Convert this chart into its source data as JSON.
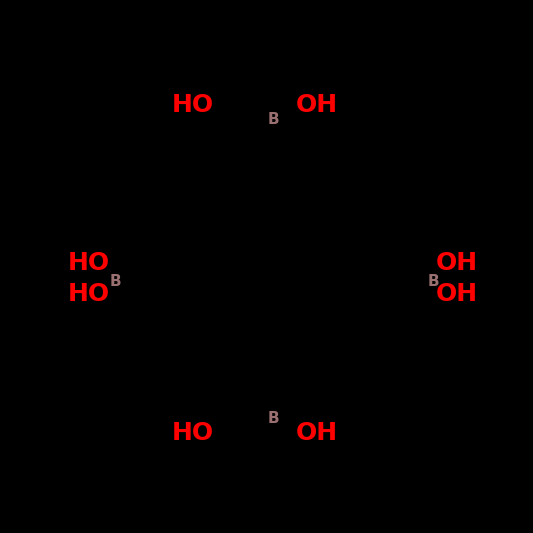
{
  "background_color": "#000000",
  "B_color": "#9b7070",
  "OH_color": "#ff0000",
  "B_fontsize": 11,
  "OH_fontsize": 18,
  "figsize": [
    5.33,
    5.33
  ],
  "dpi": 100,
  "label_positions": {
    "top": {
      "B": [
        0.5,
        0.865
      ],
      "HO": [
        0.355,
        0.9
      ],
      "OH": [
        0.555,
        0.9
      ],
      "HO_ha": "right",
      "OH_ha": "left",
      "HO_va": "center",
      "OH_va": "center"
    },
    "left": {
      "B": [
        0.115,
        0.47
      ],
      "HO_upper": [
        0.0,
        0.44
      ],
      "HO_lower": [
        0.0,
        0.515
      ],
      "HO_upper_ha": "left",
      "HO_lower_ha": "left",
      "HO_upper_va": "center",
      "HO_lower_va": "center"
    },
    "right": {
      "B": [
        0.89,
        0.47
      ],
      "OH_upper": [
        1.0,
        0.44
      ],
      "OH_lower": [
        1.0,
        0.515
      ],
      "OH_upper_ha": "right",
      "OH_lower_ha": "right",
      "OH_upper_va": "center",
      "OH_lower_va": "center"
    },
    "bottom": {
      "B": [
        0.5,
        0.135
      ],
      "HO": [
        0.355,
        0.1
      ],
      "OH": [
        0.555,
        0.1
      ],
      "HO_ha": "right",
      "OH_ha": "left",
      "HO_va": "center",
      "OH_va": "center"
    }
  }
}
